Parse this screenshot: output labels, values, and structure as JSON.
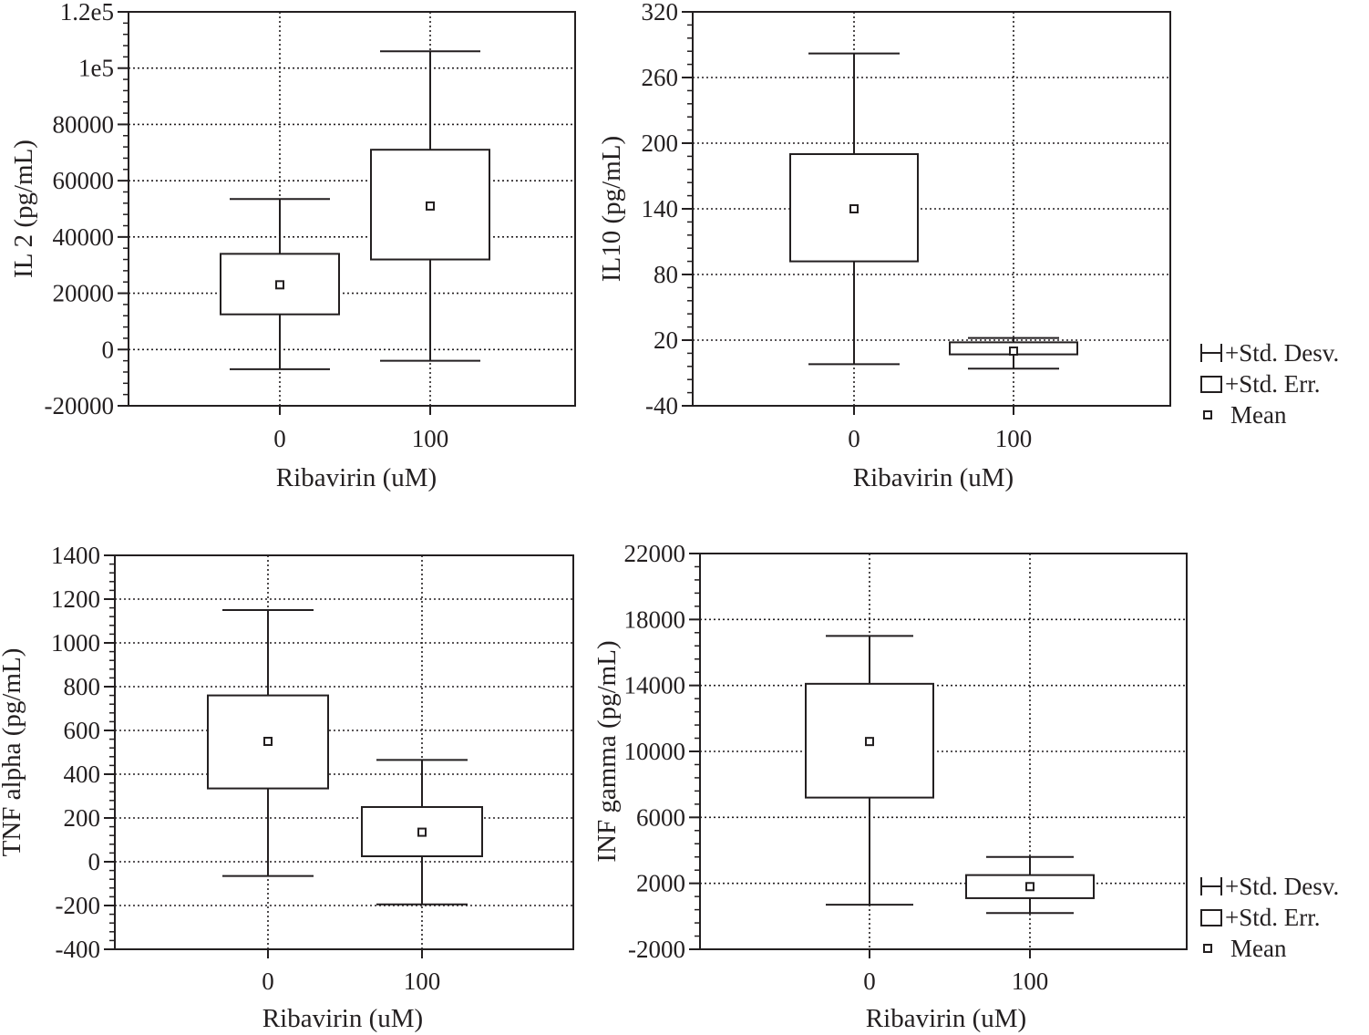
{
  "chart_data": [
    {
      "type": "box",
      "xlabel": "Ribavirin (uM)",
      "ylabel": "IL 2 (pg/mL)",
      "categories": [
        "0",
        "100"
      ],
      "ylim": [
        -20000,
        120000
      ],
      "yticks": [
        -20000,
        0,
        20000,
        40000,
        60000,
        80000,
        100000,
        120000
      ],
      "ytick_labels": [
        "-20000",
        "0",
        "20000",
        "40000",
        "60000",
        "80000",
        "1e5",
        "1.2e5"
      ],
      "grid": true,
      "series": [
        {
          "category": "0",
          "mean": 23000,
          "std_err_low": 12500,
          "std_err_high": 34000,
          "std_dev_low": -7000,
          "std_dev_high": 53500
        },
        {
          "category": "100",
          "mean": 51000,
          "std_err_low": 32000,
          "std_err_high": 71000,
          "std_dev_low": -4000,
          "std_dev_high": 106000
        }
      ]
    },
    {
      "type": "box",
      "xlabel": "Ribavirin (uM)",
      "ylabel": "IL10 (pg/mL)",
      "categories": [
        "0",
        "100"
      ],
      "ylim": [
        -40,
        320
      ],
      "yticks": [
        -40,
        20,
        80,
        140,
        200,
        260,
        320
      ],
      "ytick_labels": [
        "-40",
        "20",
        "80",
        "140",
        "200",
        "260",
        "320"
      ],
      "grid": true,
      "legend": [
        "+Std. Desv.",
        "+Std. Err.",
        "Mean"
      ],
      "legend_position": "right",
      "series": [
        {
          "category": "0",
          "mean": 140,
          "std_err_low": 92,
          "std_err_high": 190,
          "std_dev_low": -2,
          "std_dev_high": 282
        },
        {
          "category": "100",
          "mean": 10,
          "std_err_low": 7,
          "std_err_high": 18,
          "std_dev_low": -6,
          "std_dev_high": 22
        }
      ]
    },
    {
      "type": "box",
      "xlabel": "Ribavirin (uM)",
      "ylabel": "TNF alpha (pg/mL)",
      "categories": [
        "0",
        "100"
      ],
      "ylim": [
        -400,
        1400
      ],
      "yticks": [
        -400,
        -200,
        0,
        200,
        400,
        600,
        800,
        1000,
        1200,
        1400
      ],
      "ytick_labels": [
        "-400",
        "-200",
        "0",
        "200",
        "400",
        "600",
        "800",
        "1000",
        "1200",
        "1400"
      ],
      "grid": true,
      "series": [
        {
          "category": "0",
          "mean": 550,
          "std_err_low": 335,
          "std_err_high": 760,
          "std_dev_low": -65,
          "std_dev_high": 1150
        },
        {
          "category": "100",
          "mean": 135,
          "std_err_low": 25,
          "std_err_high": 250,
          "std_dev_low": -195,
          "std_dev_high": 465
        }
      ]
    },
    {
      "type": "box",
      "xlabel": "Ribavirin (uM)",
      "ylabel": "INF gamma (pg/mL)",
      "categories": [
        "0",
        "100"
      ],
      "ylim": [
        -2000,
        22000
      ],
      "yticks": [
        -2000,
        2000,
        6000,
        10000,
        14000,
        18000,
        22000
      ],
      "ytick_labels": [
        "-2000",
        "2000",
        "6000",
        "10000",
        "14000",
        "18000",
        "22000"
      ],
      "grid": true,
      "legend": [
        "+Std. Desv.",
        "+Std. Err.",
        "Mean"
      ],
      "legend_position": "right",
      "series": [
        {
          "category": "0",
          "mean": 10600,
          "std_err_low": 7200,
          "std_err_high": 14100,
          "std_dev_low": 700,
          "std_dev_high": 17000
        },
        {
          "category": "100",
          "mean": 1800,
          "std_err_low": 1100,
          "std_err_high": 2500,
          "std_dev_low": 200,
          "std_dev_high": 3600
        }
      ]
    }
  ]
}
